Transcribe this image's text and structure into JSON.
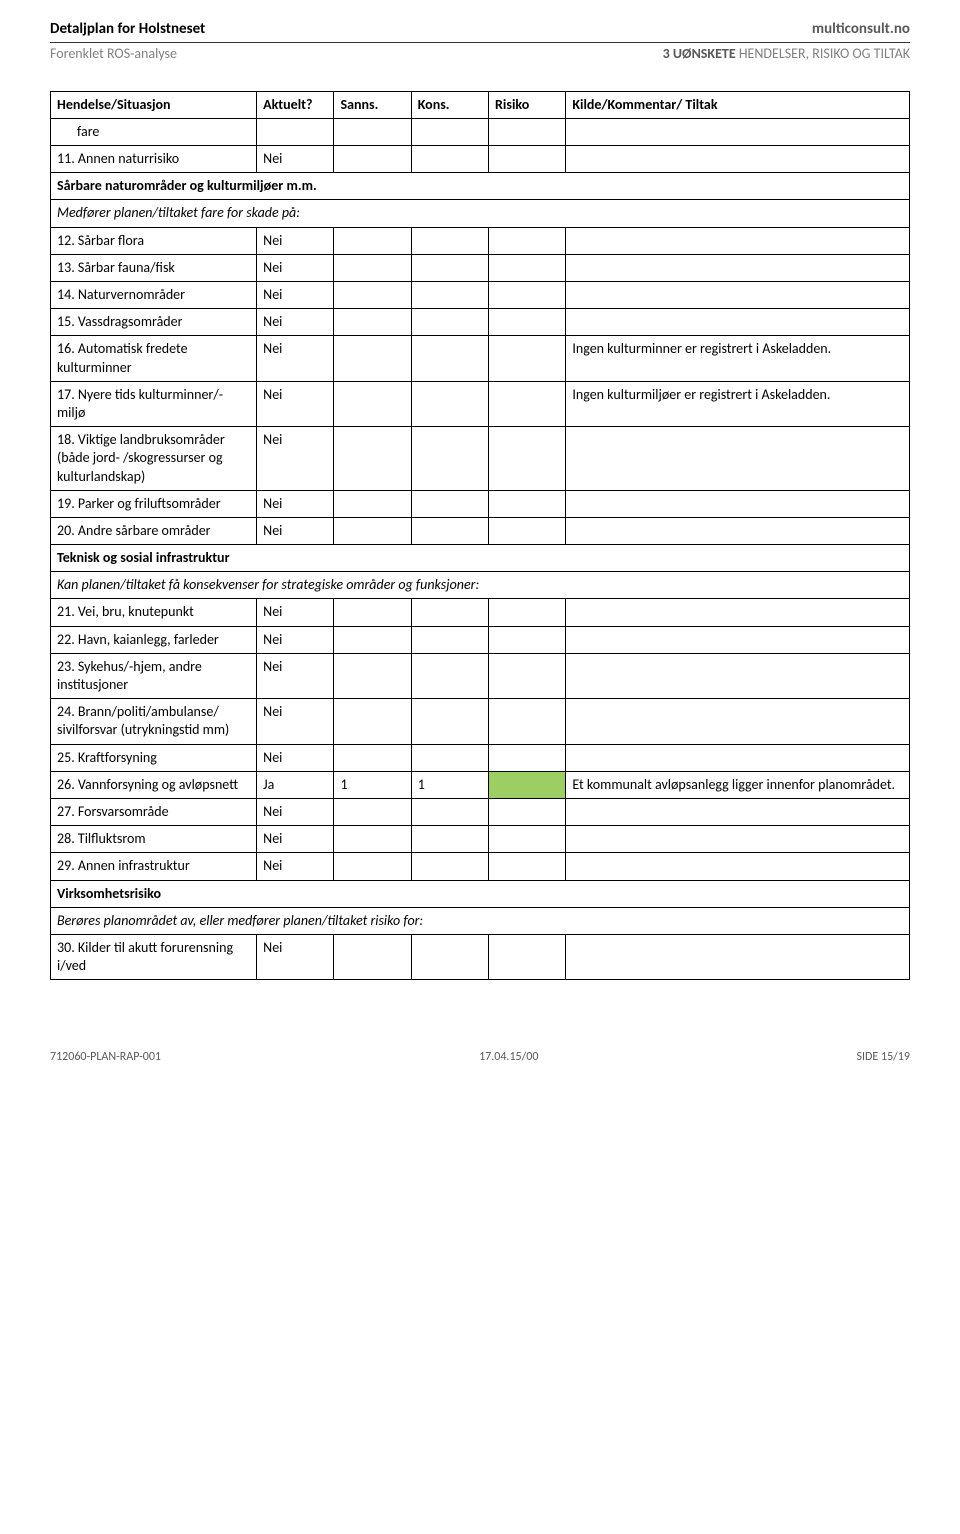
{
  "header": {
    "title_left": "Detaljplan for Holstneset",
    "title_right": "multiconsult.no",
    "sub_left": "Forenklet ROS-analyse",
    "sub_right_bold": "3 UØNSKETE",
    "sub_right_rest": " HENDELSER, RISIKO OG TILTAK"
  },
  "columns": {
    "c1": "Hendelse/Situasjon",
    "c2": "Aktuelt?",
    "c3": "Sanns.",
    "c4": "Kons.",
    "c5": "Risiko",
    "c6": "Kilde/Kommentar/ Tiltak"
  },
  "rows": [
    {
      "type": "data",
      "indent": true,
      "label": "fare"
    },
    {
      "type": "data",
      "label": "11. Annen naturrisiko",
      "aktuelt": "Nei"
    },
    {
      "type": "section",
      "label": "Sårbare naturområder og kulturmiljøer m.m."
    },
    {
      "type": "italic",
      "label": "Medfører planen/tiltaket fare for skade på:"
    },
    {
      "type": "data",
      "label": "12. Sårbar flora",
      "aktuelt": "Nei"
    },
    {
      "type": "data",
      "label": "13. Sårbar fauna/fisk",
      "aktuelt": "Nei"
    },
    {
      "type": "data",
      "label": "14. Naturvernområder",
      "aktuelt": "Nei"
    },
    {
      "type": "data",
      "label": "15. Vassdragsområder",
      "aktuelt": "Nei"
    },
    {
      "type": "data",
      "label": "16. Automatisk fredete kulturminner",
      "aktuelt": "Nei",
      "kilde": "Ingen kulturminner er registrert i Askeladden."
    },
    {
      "type": "data",
      "label": "17. Nyere tids kulturminner/-miljø",
      "aktuelt": "Nei",
      "kilde": "Ingen kulturmiljøer er registrert i Askeladden."
    },
    {
      "type": "data",
      "label": "18. Viktige landbruksområder (både jord- /skogressurser og kulturlandskap)",
      "aktuelt": "Nei"
    },
    {
      "type": "data",
      "label": "19. Parker og friluftsområder",
      "aktuelt": "Nei"
    },
    {
      "type": "data",
      "label": "20. Andre sårbare områder",
      "aktuelt": "Nei"
    },
    {
      "type": "section",
      "label": "Teknisk og sosial infrastruktur"
    },
    {
      "type": "italic",
      "label": "Kan planen/tiltaket få konsekvenser for strategiske områder og funksjoner:"
    },
    {
      "type": "data",
      "label": "21. Vei, bru, knutepunkt",
      "aktuelt": "Nei"
    },
    {
      "type": "data",
      "label": "22. Havn, kaianlegg, farleder",
      "aktuelt": "Nei"
    },
    {
      "type": "data",
      "label": "23. Sykehus/-hjem, andre institusjoner",
      "aktuelt": "Nei"
    },
    {
      "type": "data",
      "label": "24. Brann/politi/ambulanse/ sivilforsvar (utrykningstid mm)",
      "aktuelt": "Nei"
    },
    {
      "type": "data",
      "label": "25. Kraftforsyning",
      "aktuelt": "Nei"
    },
    {
      "type": "data",
      "label": "26. Vannforsyning og avløpsnett",
      "aktuelt": "Ja",
      "sanns": "1",
      "kons": "1",
      "risiko_class": "risk-green",
      "kilde": "Et kommunalt avløpsanlegg ligger innenfor planområdet."
    },
    {
      "type": "data",
      "label": "27. Forsvarsområde",
      "aktuelt": "Nei"
    },
    {
      "type": "data",
      "label": "28. Tilfluktsrom",
      "aktuelt": "Nei"
    },
    {
      "type": "data",
      "label": "29. Annen infrastruktur",
      "aktuelt": "Nei"
    },
    {
      "type": "section",
      "label": "Virksomhetsrisiko"
    },
    {
      "type": "italic",
      "label": "Berøres planområdet av, eller medfører planen/tiltaket risiko for:"
    },
    {
      "type": "data",
      "label": "30. Kilder til akutt forurensning i/ved",
      "aktuelt": "Nei"
    }
  ],
  "footer": {
    "left": "712060-PLAN-RAP-001",
    "center": "17.04.15/00",
    "right": "SIDE 15/19"
  },
  "colors": {
    "risk_green": "#9cce63",
    "text_grey": "#808080"
  }
}
